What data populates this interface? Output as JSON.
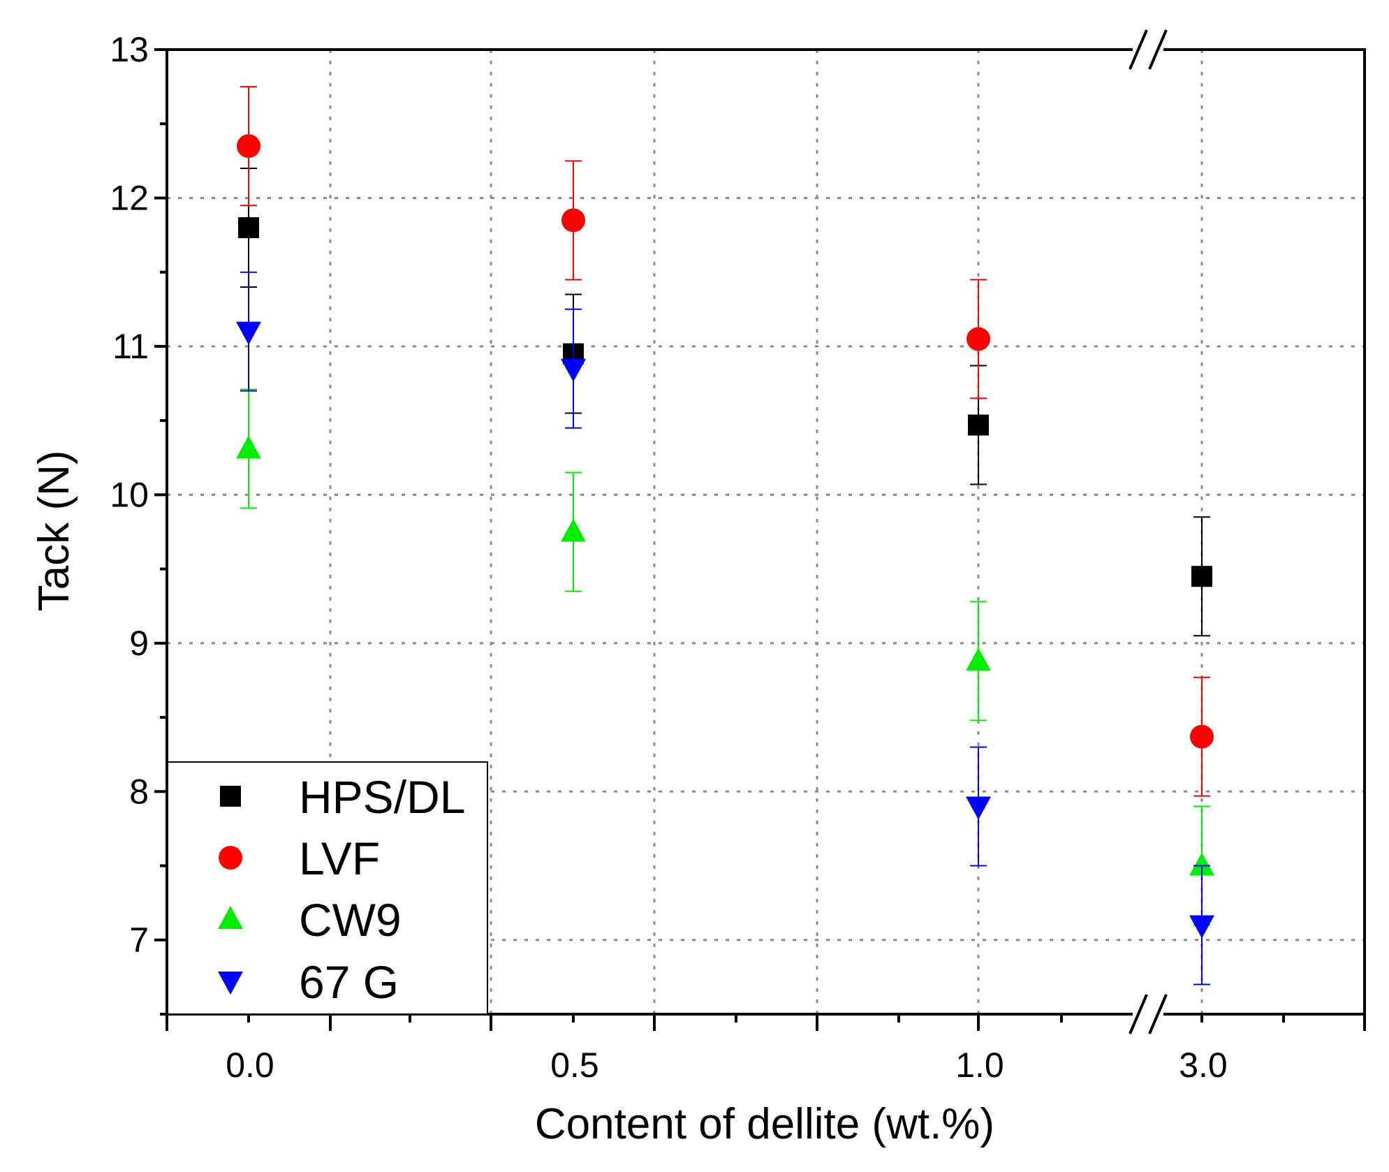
{
  "chart_data": {
    "type": "scatter",
    "xlabel": "Content of dellite (wt.%)",
    "ylabel": "Tack (N)",
    "categories": [
      "0.0",
      "0.5",
      "1.0",
      "3.0"
    ],
    "x_axis_break": "between 1.0 and 3.0",
    "ylim": [
      6.5,
      13
    ],
    "yticks": [
      "7",
      "8",
      "9",
      "10",
      "11",
      "12",
      "13"
    ],
    "grid": true,
    "legend_position": "bottom-left",
    "series": [
      {
        "name": "HPS/DL",
        "marker": "square",
        "color": "#000000",
        "values": [
          11.8,
          10.95,
          10.47,
          9.45
        ],
        "errors": [
          0.4,
          0.4,
          0.4,
          0.4
        ]
      },
      {
        "name": "LVF",
        "marker": "circle",
        "color": "#ff0000",
        "values": [
          12.35,
          11.85,
          11.05,
          8.37
        ],
        "errors": [
          0.4,
          0.4,
          0.4,
          0.4
        ]
      },
      {
        "name": "CW9",
        "marker": "triangle-up",
        "color": "#00ee00",
        "values": [
          10.31,
          9.75,
          8.88,
          7.5
        ],
        "errors": [
          0.4,
          0.4,
          0.4,
          0.4
        ]
      },
      {
        "name": "67 G",
        "marker": "triangle-down",
        "color": "#0000ff",
        "values": [
          11.1,
          10.85,
          7.9,
          7.1
        ],
        "errors": [
          0.4,
          0.4,
          0.4,
          0.4
        ]
      }
    ]
  }
}
